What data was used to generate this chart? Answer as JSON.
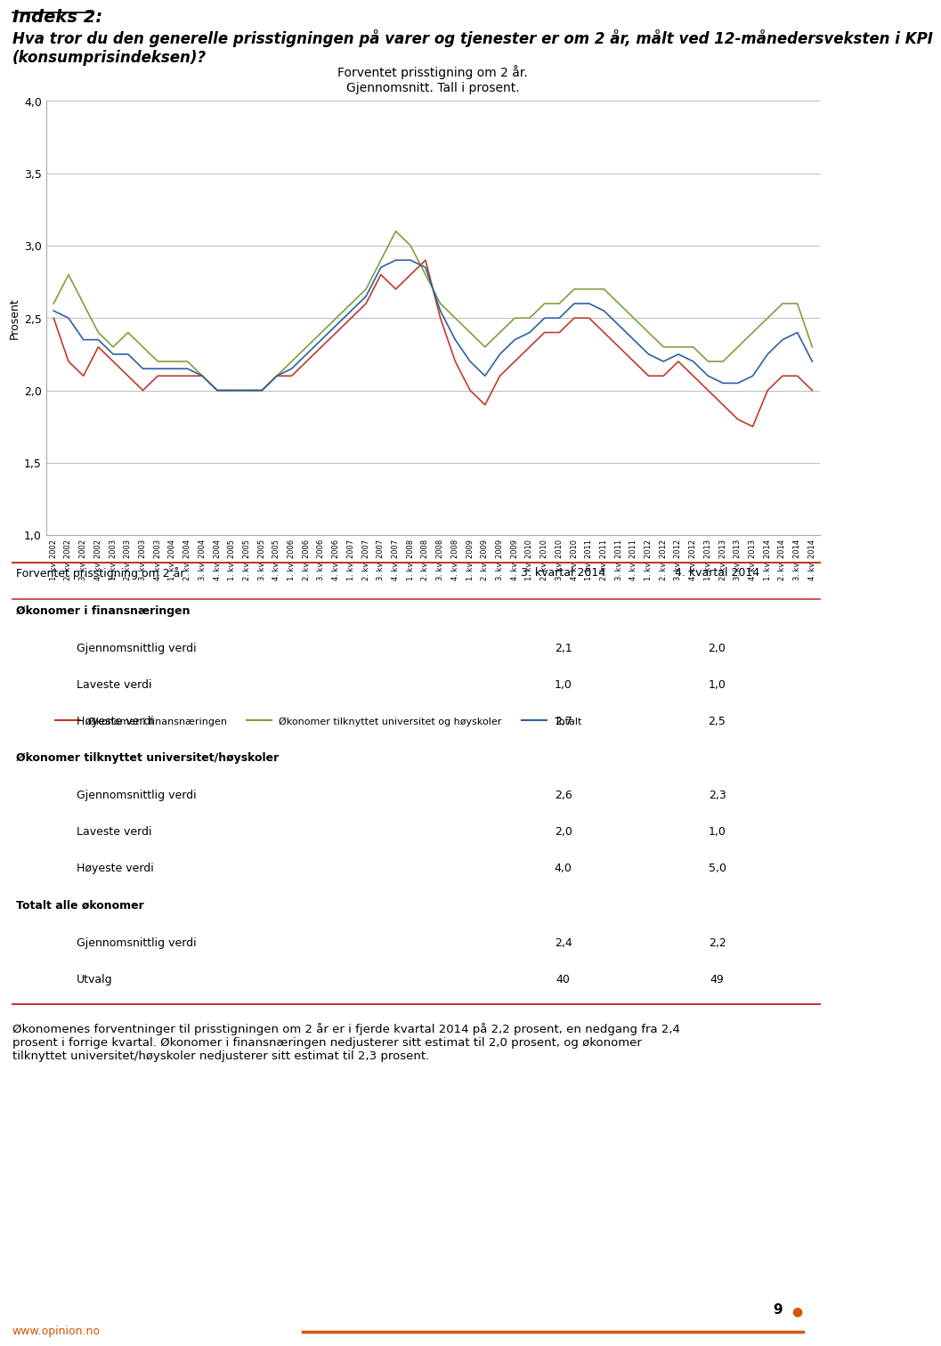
{
  "title_heading": "Indeks 2:",
  "subtitle_heading": "Hva tror du den generelle prisstigningen på varer og tjenester er om 2 år, målt ved 12-månedersveksten i KPI\n(konsumprisindeksen)?",
  "chart_title_line1": "Forventet prisstigning om 2 år.",
  "chart_title_line2": "Gjennomsnitt. Tall i prosent.",
  "ylabel": "Prosent",
  "ylim": [
    1.0,
    4.0
  ],
  "yticks": [
    1.0,
    1.5,
    2.0,
    2.5,
    3.0,
    3.5,
    4.0
  ],
  "legend_labels": [
    "Økonomer i finansnæringen",
    "Økonomer tilknyttet universitet og høyskoler",
    "Totalt"
  ],
  "line_colors": [
    "#c0392b",
    "#7f9f3f",
    "#2e5fa3"
  ],
  "x_labels": [
    "1. kv. 2002",
    "2. kv. 2002",
    "3. kv. 2002",
    "4. kv. 2002",
    "1. kv. 2003",
    "2. kv. 2003",
    "3. kv. 2003",
    "4. kv. 2003",
    "1. kv. 2004",
    "2. kv. 2004",
    "3. kv. 2004",
    "4. kv. 2004",
    "1. kv. 2005",
    "2. kv. 2005",
    "3. kv. 2005",
    "4. kv. 2005",
    "1. kv. 2006",
    "2. kv. 2006",
    "3. kv. 2006",
    "4. kv. 2006",
    "1. kv. 2007",
    "2. kv. 2007",
    "3. kv. 2007",
    "4. kv. 2007",
    "1. kv. 2008",
    "2. kv. 2008",
    "3. kv. 2008",
    "4. kv. 2008",
    "1. kv. 2009",
    "2. kv. 2009",
    "3. kv. 2009",
    "4. kv. 2009",
    "1. kv. 2010",
    "2. kv. 2010",
    "3. kv. 2010",
    "4. kv. 2010",
    "1. kv. 2011",
    "2. kv. 2011",
    "3. kv. 2011",
    "4. kv. 2011",
    "1. kv. 2012",
    "2. kv. 2012",
    "3. kv. 2012",
    "4. kv. 2012",
    "1. kv. 2013",
    "2. kv. 2013",
    "3. kv. 2013",
    "4. kv. 2013",
    "1. kv. 2014",
    "2. kv. 2014",
    "3. kv. 2014",
    "4. kv. 2014"
  ],
  "finansnaeringen": [
    2.5,
    2.2,
    2.1,
    2.3,
    2.2,
    2.1,
    2.0,
    2.1,
    2.1,
    2.1,
    2.1,
    2.0,
    2.0,
    2.0,
    2.0,
    2.1,
    2.1,
    2.2,
    2.3,
    2.4,
    2.5,
    2.6,
    2.8,
    2.7,
    2.8,
    2.9,
    2.5,
    2.2,
    2.0,
    1.9,
    2.1,
    2.2,
    2.3,
    2.4,
    2.4,
    2.5,
    2.5,
    2.4,
    2.3,
    2.2,
    2.1,
    2.1,
    2.2,
    2.1,
    2.0,
    1.9,
    1.8,
    1.75,
    2.0,
    2.1,
    2.1,
    2.0
  ],
  "universitet": [
    2.6,
    2.8,
    2.6,
    2.4,
    2.3,
    2.4,
    2.3,
    2.2,
    2.2,
    2.2,
    2.1,
    2.0,
    2.0,
    2.0,
    2.0,
    2.1,
    2.2,
    2.3,
    2.4,
    2.5,
    2.6,
    2.7,
    2.9,
    3.1,
    3.0,
    2.8,
    2.6,
    2.5,
    2.4,
    2.3,
    2.4,
    2.5,
    2.5,
    2.6,
    2.6,
    2.7,
    2.7,
    2.7,
    2.6,
    2.5,
    2.4,
    2.3,
    2.3,
    2.3,
    2.2,
    2.2,
    2.3,
    2.4,
    2.5,
    2.6,
    2.6,
    2.3
  ],
  "totalt": [
    2.55,
    2.5,
    2.35,
    2.35,
    2.25,
    2.25,
    2.15,
    2.15,
    2.15,
    2.15,
    2.1,
    2.0,
    2.0,
    2.0,
    2.0,
    2.1,
    2.15,
    2.25,
    2.35,
    2.45,
    2.55,
    2.65,
    2.85,
    2.9,
    2.9,
    2.85,
    2.55,
    2.35,
    2.2,
    2.1,
    2.25,
    2.35,
    2.4,
    2.5,
    2.5,
    2.6,
    2.6,
    2.55,
    2.45,
    2.35,
    2.25,
    2.2,
    2.25,
    2.2,
    2.1,
    2.05,
    2.05,
    2.1,
    2.25,
    2.35,
    2.4,
    2.2
  ],
  "table_header": [
    "Forventet prisstigning om 2 år",
    "3. kvartal 2014",
    "4. kvartal 2014"
  ],
  "table_sections": [
    {
      "section_title": "Økonomer i finansnæringen",
      "rows": [
        [
          "Gjennomsnittlig verdi",
          "2,1",
          "2,0"
        ],
        [
          "Laveste verdi",
          "1,0",
          "1,0"
        ],
        [
          "Høyeste verdi",
          "2,7",
          "2,5"
        ]
      ]
    },
    {
      "section_title": "Økonomer tilknyttet universitet/høyskoler",
      "rows": [
        [
          "Gjennomsnittlig verdi",
          "2,6",
          "2,3"
        ],
        [
          "Laveste verdi",
          "2,0",
          "1,0"
        ],
        [
          "Høyeste verdi",
          "4,0",
          "5,0"
        ]
      ]
    },
    {
      "section_title": "Totalt alle økonomer",
      "rows": [
        [
          "Gjennomsnittlig verdi",
          "2,4",
          "2,2"
        ],
        [
          "Utvalg",
          "40",
          "49"
        ]
      ]
    }
  ],
  "footer_text": "Økonomenes forventninger til prisstigningen om 2 år er i fjerde kvartal 2014 på 2,2 prosent, en nedgang fra 2,4\nprosent i forrige kvartal. Økonomer i finansnæringen nedjusterer sitt estimat til 2,0 prosent, og økonomer\ntilknyttet universitet/høyskoler nedjusterer sitt estimat til 2,3 prosent.",
  "page_number": "9",
  "website": "www.opinion.no",
  "table_section_bg": "#f5c6c6",
  "table_row_bg_alt": "#fde8e8",
  "table_border_color": "#c0392b",
  "bg_color": "#ffffff",
  "orange_color": "#d45500"
}
